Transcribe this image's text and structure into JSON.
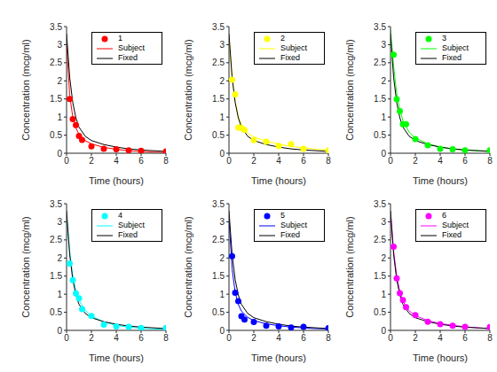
{
  "chart_data": [
    {
      "type": "line",
      "x_label": "Time (hours)",
      "y_label": "Concentration (mcg/ml)",
      "xlim": [
        0,
        8
      ],
      "ylim": [
        0,
        3.5
      ],
      "xticks": [
        0,
        2,
        4,
        6,
        8
      ],
      "yticks": [
        0,
        0.5,
        1,
        1.5,
        2,
        2.5,
        3,
        3.5
      ],
      "legend": "upper right",
      "series": [
        {
          "name": "1",
          "type": "scatter",
          "marker": "circle",
          "color": "#ff0000",
          "x": [
            0.25,
            0.5,
            0.75,
            1,
            1.25,
            2,
            3,
            4,
            5,
            6,
            8
          ],
          "values": [
            1.5,
            0.94,
            0.78,
            0.48,
            0.37,
            0.19,
            0.12,
            0.11,
            0.08,
            0.07,
            0.05
          ]
        },
        {
          "name": "Subject",
          "type": "line",
          "line_style": "solid",
          "color": "#ff0000",
          "x": [
            0,
            0.25,
            0.5,
            0.75,
            1,
            1.5,
            2,
            3,
            4,
            5,
            6,
            7,
            8
          ],
          "values": [
            3.1,
            1.6,
            1.0,
            0.7,
            0.52,
            0.35,
            0.26,
            0.16,
            0.11,
            0.07,
            0.05,
            0.03,
            0.02
          ]
        },
        {
          "name": "Fixed",
          "type": "line",
          "line_style": "solid",
          "color": "#000000",
          "x": [
            0,
            0.25,
            0.5,
            0.75,
            1,
            1.5,
            2,
            3,
            4,
            5,
            6,
            7,
            8
          ],
          "values": [
            3.3,
            2.1,
            1.4,
            0.98,
            0.72,
            0.47,
            0.35,
            0.24,
            0.17,
            0.12,
            0.09,
            0.07,
            0.05
          ]
        }
      ]
    },
    {
      "type": "line",
      "x_label": "Time (hours)",
      "y_label": "Concentration (mcg/ml)",
      "xlim": [
        0,
        8
      ],
      "ylim": [
        0,
        3.5
      ],
      "xticks": [
        0,
        2,
        4,
        6,
        8
      ],
      "yticks": [
        0,
        0.5,
        1,
        1.5,
        2,
        2.5,
        3,
        3.5
      ],
      "legend": "upper right",
      "series": [
        {
          "name": "2",
          "type": "scatter",
          "marker": "circle",
          "color": "#ffff00",
          "x": [
            0.25,
            0.5,
            0.75,
            1,
            1.25,
            2,
            3,
            4,
            5,
            6,
            8
          ],
          "values": [
            2.03,
            1.63,
            0.71,
            0.7,
            0.64,
            0.36,
            0.32,
            0.2,
            0.25,
            0.12,
            0.08
          ]
        },
        {
          "name": "Subject",
          "type": "line",
          "line_style": "solid",
          "color": "#ffff00",
          "x": [
            0,
            0.25,
            0.5,
            0.75,
            1,
            1.5,
            2,
            3,
            4,
            5,
            6,
            7,
            8
          ],
          "values": [
            3.2,
            2.1,
            1.45,
            1.03,
            0.78,
            0.55,
            0.45,
            0.33,
            0.25,
            0.19,
            0.15,
            0.11,
            0.08
          ]
        },
        {
          "name": "Fixed",
          "type": "line",
          "line_style": "solid",
          "color": "#000000",
          "x": [
            0,
            0.25,
            0.5,
            0.75,
            1,
            1.5,
            2,
            3,
            4,
            5,
            6,
            7,
            8
          ],
          "values": [
            3.3,
            2.1,
            1.4,
            0.98,
            0.72,
            0.47,
            0.35,
            0.24,
            0.17,
            0.12,
            0.09,
            0.07,
            0.05
          ]
        }
      ]
    },
    {
      "type": "line",
      "x_label": "Time (hours)",
      "y_label": "Concentration (mcg/ml)",
      "xlim": [
        0,
        8
      ],
      "ylim": [
        0,
        3.5
      ],
      "xticks": [
        0,
        2,
        4,
        6,
        8
      ],
      "yticks": [
        0,
        0.5,
        1,
        1.5,
        2,
        2.5,
        3,
        3.5
      ],
      "legend": "upper right",
      "series": [
        {
          "name": "3",
          "type": "scatter",
          "marker": "circle",
          "color": "#00ff00",
          "x": [
            0.25,
            0.5,
            0.75,
            1,
            1.25,
            2,
            3,
            4,
            5,
            6,
            8
          ],
          "values": [
            2.72,
            1.49,
            1.16,
            0.8,
            0.8,
            0.39,
            0.22,
            0.12,
            0.11,
            0.08,
            0.08
          ]
        },
        {
          "name": "Subject",
          "type": "line",
          "line_style": "solid",
          "color": "#00ff00",
          "x": [
            0,
            0.25,
            0.5,
            0.75,
            1,
            1.5,
            2,
            3,
            4,
            5,
            6,
            7,
            8
          ],
          "values": [
            3.4,
            2.4,
            1.65,
            1.2,
            0.9,
            0.58,
            0.42,
            0.26,
            0.17,
            0.12,
            0.09,
            0.07,
            0.06
          ]
        },
        {
          "name": "Fixed",
          "type": "line",
          "line_style": "solid",
          "color": "#000000",
          "x": [
            0,
            0.25,
            0.5,
            0.75,
            1,
            1.5,
            2,
            3,
            4,
            5,
            6,
            7,
            8
          ],
          "values": [
            3.3,
            2.1,
            1.4,
            0.98,
            0.72,
            0.47,
            0.35,
            0.24,
            0.17,
            0.12,
            0.09,
            0.07,
            0.05
          ]
        }
      ]
    },
    {
      "type": "line",
      "x_label": "Time (hours)",
      "y_label": "Concentration (mcg/ml)",
      "xlim": [
        0,
        8
      ],
      "ylim": [
        0,
        3.5
      ],
      "xticks": [
        0,
        2,
        4,
        6,
        8
      ],
      "yticks": [
        0,
        0.5,
        1,
        1.5,
        2,
        2.5,
        3,
        3.5
      ],
      "legend": "upper right",
      "series": [
        {
          "name": "4",
          "type": "scatter",
          "marker": "circle",
          "color": "#00ffff",
          "x": [
            0.25,
            0.5,
            0.75,
            1,
            1.25,
            2,
            3,
            4,
            5,
            6,
            8
          ],
          "values": [
            1.85,
            1.39,
            1.02,
            0.89,
            0.59,
            0.4,
            0.16,
            0.11,
            0.1,
            0.07,
            0.07
          ]
        },
        {
          "name": "Subject",
          "type": "line",
          "line_style": "solid",
          "color": "#00ffff",
          "x": [
            0,
            0.25,
            0.5,
            0.75,
            1,
            1.5,
            2,
            3,
            4,
            5,
            6,
            7,
            8
          ],
          "values": [
            3.2,
            2.2,
            1.5,
            1.1,
            0.83,
            0.55,
            0.4,
            0.23,
            0.14,
            0.09,
            0.06,
            0.04,
            0.03
          ]
        },
        {
          "name": "Fixed",
          "type": "line",
          "line_style": "solid",
          "color": "#000000",
          "x": [
            0,
            0.25,
            0.5,
            0.75,
            1,
            1.5,
            2,
            3,
            4,
            5,
            6,
            7,
            8
          ],
          "values": [
            3.3,
            2.1,
            1.4,
            0.98,
            0.72,
            0.47,
            0.35,
            0.24,
            0.17,
            0.12,
            0.09,
            0.07,
            0.05
          ]
        }
      ]
    },
    {
      "type": "line",
      "x_label": "Time (hours)",
      "y_label": "Concentration (mcg/ml)",
      "xlim": [
        0,
        8
      ],
      "ylim": [
        0,
        3.5
      ],
      "xticks": [
        0,
        2,
        4,
        6,
        8
      ],
      "yticks": [
        0,
        0.5,
        1,
        1.5,
        2,
        2.5,
        3,
        3.5
      ],
      "legend": "upper right",
      "series": [
        {
          "name": "5",
          "type": "scatter",
          "marker": "circle",
          "color": "#0000ff",
          "x": [
            0.25,
            0.5,
            0.75,
            1,
            1.25,
            2,
            3,
            4,
            5,
            6,
            8
          ],
          "values": [
            2.05,
            1.04,
            0.81,
            0.39,
            0.3,
            0.23,
            0.13,
            0.11,
            0.08,
            0.1,
            0.06
          ]
        },
        {
          "name": "Subject",
          "type": "line",
          "line_style": "solid",
          "color": "#0000ff",
          "x": [
            0,
            0.25,
            0.5,
            0.75,
            1,
            1.5,
            2,
            3,
            4,
            5,
            6,
            7,
            8
          ],
          "values": [
            3.1,
            1.7,
            1.05,
            0.72,
            0.53,
            0.36,
            0.27,
            0.18,
            0.13,
            0.09,
            0.07,
            0.05,
            0.04
          ]
        },
        {
          "name": "Fixed",
          "type": "line",
          "line_style": "solid",
          "color": "#000000",
          "x": [
            0,
            0.25,
            0.5,
            0.75,
            1,
            1.5,
            2,
            3,
            4,
            5,
            6,
            7,
            8
          ],
          "values": [
            3.3,
            2.1,
            1.4,
            0.98,
            0.72,
            0.47,
            0.35,
            0.24,
            0.17,
            0.12,
            0.09,
            0.07,
            0.05
          ]
        }
      ]
    },
    {
      "type": "line",
      "x_label": "Time (hours)",
      "y_label": "Concentration (mcg/ml)",
      "xlim": [
        0,
        8
      ],
      "ylim": [
        0,
        3.5
      ],
      "xticks": [
        0,
        2,
        4,
        6,
        8
      ],
      "yticks": [
        0,
        0.5,
        1,
        1.5,
        2,
        2.5,
        3,
        3.5
      ],
      "legend": "upper right",
      "series": [
        {
          "name": "6",
          "type": "scatter",
          "marker": "circle",
          "color": "#ff00ff",
          "x": [
            0.25,
            0.5,
            0.75,
            1,
            1.25,
            2,
            3,
            4,
            5,
            6,
            8
          ],
          "values": [
            2.31,
            1.44,
            1.03,
            0.84,
            0.64,
            0.42,
            0.24,
            0.17,
            0.13,
            0.1,
            0.09
          ]
        },
        {
          "name": "Subject",
          "type": "line",
          "line_style": "solid",
          "color": "#ff00ff",
          "x": [
            0,
            0.25,
            0.5,
            0.75,
            1,
            1.5,
            2,
            3,
            4,
            5,
            6,
            7,
            8
          ],
          "values": [
            3.3,
            2.2,
            1.5,
            1.07,
            0.8,
            0.54,
            0.41,
            0.27,
            0.19,
            0.14,
            0.1,
            0.07,
            0.05
          ]
        },
        {
          "name": "Fixed",
          "type": "line",
          "line_style": "solid",
          "color": "#000000",
          "x": [
            0,
            0.25,
            0.5,
            0.75,
            1,
            1.5,
            2,
            3,
            4,
            5,
            6,
            7,
            8
          ],
          "values": [
            3.3,
            2.1,
            1.4,
            0.98,
            0.72,
            0.47,
            0.35,
            0.24,
            0.17,
            0.12,
            0.09,
            0.07,
            0.05
          ]
        }
      ]
    }
  ]
}
